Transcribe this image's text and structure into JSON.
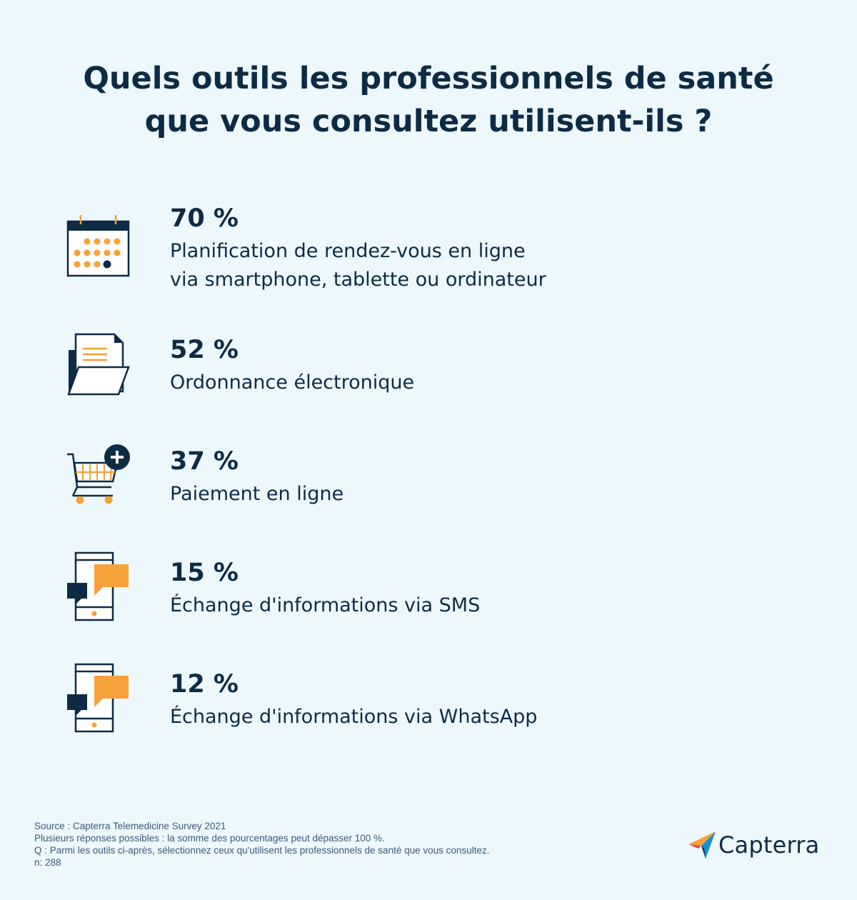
{
  "title": {
    "line1": "Quels outils les professionnels de santé",
    "line2": "que vous consultez utilisent-ils ?"
  },
  "items": [
    {
      "icon": "calendar-icon",
      "percent": "70 %",
      "label_lines": [
        "Planification de rendez-vous en ligne",
        "via smartphone, tablette ou ordinateur"
      ]
    },
    {
      "icon": "document-folder-icon",
      "percent": "52 %",
      "label_lines": [
        "Ordonnance électronique"
      ]
    },
    {
      "icon": "shopping-cart-plus-icon",
      "percent": "37 %",
      "label_lines": [
        "Paiement en ligne"
      ]
    },
    {
      "icon": "phone-chat-icon",
      "percent": "15 %",
      "label_lines": [
        "Échange d'informations via SMS"
      ]
    },
    {
      "icon": "phone-chat-icon",
      "percent": "12 %",
      "label_lines": [
        "Échange d'informations via WhatsApp"
      ]
    }
  ],
  "footer": {
    "source": "Source : Capterra Telemedicine Survey 2021",
    "note": "Plusieurs réponses possibles : la somme des pourcentages peut dépasser 100 %.",
    "question": "Q : Parmi les outils ci-après, sélectionnez ceux qu'utilisent les professionnels de santé que vous consultez.",
    "sample": "n: 288"
  },
  "logo": {
    "text": "Capterra"
  },
  "colors": {
    "background": "#edf8fc",
    "navy": "#0d2b45",
    "orange": "#f7a13a",
    "logo_blue": "#1a8fce",
    "logo_red": "#ef4343",
    "logo_orange": "#f7a13a"
  }
}
